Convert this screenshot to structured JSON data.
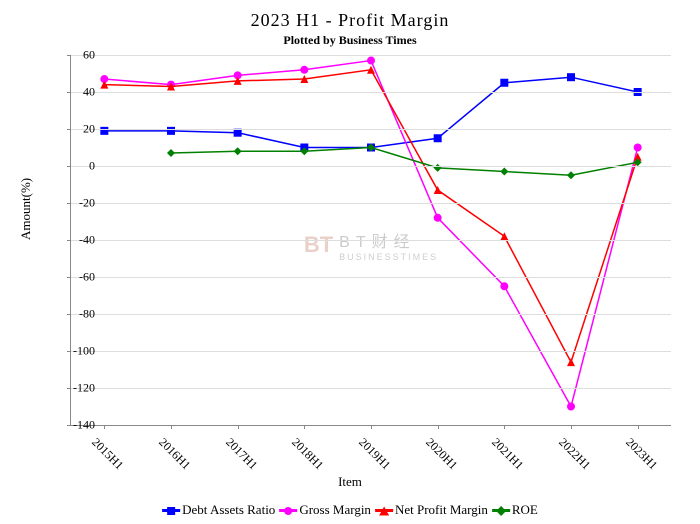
{
  "chart": {
    "type": "line",
    "title": "2023 H1 - Profit Margin",
    "subtitle": "Plotted by Business Times",
    "xlabel": "Item",
    "ylabel": "Amount(%)",
    "categories": [
      "2015H1",
      "2016H1",
      "2017H1",
      "2018H1",
      "2019H1",
      "2020H1",
      "2021H1",
      "2022H1",
      "2023H1"
    ],
    "ylim": [
      -140,
      60
    ],
    "yticks": [
      -140,
      -120,
      -100,
      -80,
      -60,
      -40,
      -20,
      0,
      20,
      40,
      60
    ],
    "grid_color": "#dddddd",
    "axis_color": "#888888",
    "background_color": "#ffffff",
    "title_fontsize": 18,
    "subtitle_fontsize": 12,
    "label_fontsize": 13,
    "tick_fontsize": 12,
    "line_width": 1.5,
    "marker_size": 8,
    "series": [
      {
        "name": "Debt Assets Ratio",
        "color": "#0000ff",
        "marker": "square",
        "values": [
          19,
          19,
          18,
          10,
          10,
          15,
          45,
          48,
          40
        ]
      },
      {
        "name": "Gross Margin",
        "color": "#ff00ff",
        "marker": "circle",
        "values": [
          47,
          44,
          49,
          52,
          57,
          -28,
          -65,
          -130,
          10
        ]
      },
      {
        "name": "Net Profit Margin",
        "color": "#ff0000",
        "marker": "triangle",
        "values": [
          44,
          43,
          46,
          47,
          52,
          -13,
          -38,
          -106,
          5
        ]
      },
      {
        "name": "ROE",
        "color": "#008000",
        "marker": "diamond",
        "values": [
          null,
          7,
          8,
          8,
          10,
          -1,
          -3,
          -5,
          2
        ]
      }
    ],
    "watermark": {
      "logo_text": "BT",
      "cn_text": "BT财经",
      "en_text": "BUSINESSTIMES",
      "logo_color": "rgba(200,140,120,0.4)",
      "text_color": "rgba(160,160,160,0.55)"
    }
  }
}
